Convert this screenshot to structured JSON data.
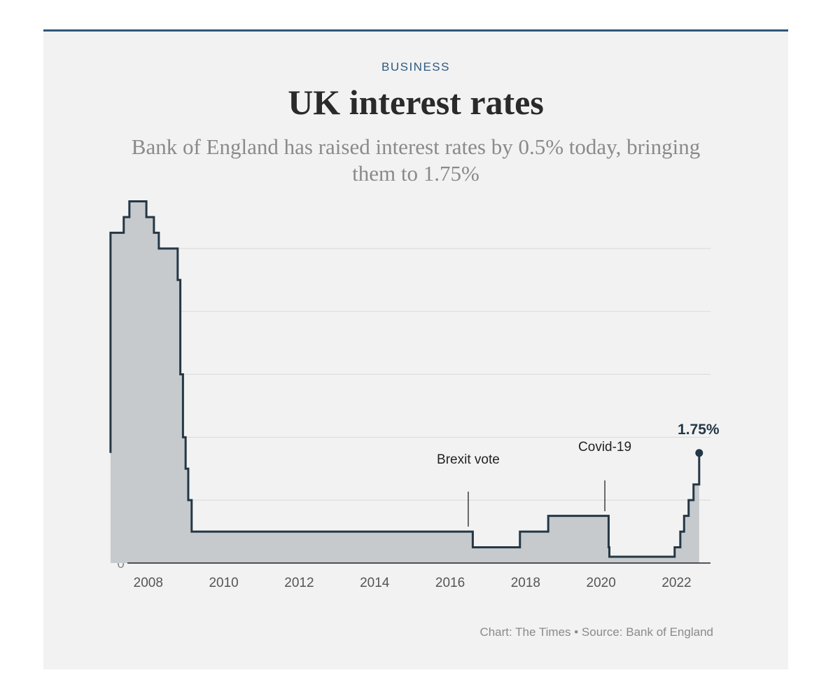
{
  "header": {
    "kicker": "BUSINESS",
    "title": "UK interest rates",
    "subtitle": "Bank of England has raised interest rates by 0.5% today, bringing them to 1.75%"
  },
  "credit": "Chart: The Times • Source: Bank of England",
  "colors": {
    "rule": "#2f5577",
    "kicker": "#2c5a80",
    "line": "#243746",
    "area": "#c6cacd",
    "grid": "#d9d9d9",
    "background": "#f2f2f2"
  },
  "chart_data": {
    "type": "area",
    "step": true,
    "title": "UK interest rates",
    "xlabel": "",
    "ylabel": "",
    "xlim": [
      2006.9,
      2022.9
    ],
    "ylim": [
      0,
      5.75
    ],
    "y_ticks": [
      0,
      1,
      2,
      3,
      4,
      5
    ],
    "x_ticks": [
      2008,
      2010,
      2012,
      2014,
      2016,
      2018,
      2020,
      2022
    ],
    "grid": true,
    "series": [
      {
        "name": "",
        "x": [
          2007.0,
          2007.35,
          2007.5,
          2007.95,
          2008.15,
          2008.28,
          2008.45,
          2008.78,
          2008.85,
          2008.92,
          2008.99,
          2009.06,
          2009.15,
          2016.6,
          2017.85,
          2018.6,
          2020.2,
          2020.22,
          2021.95,
          2022.1,
          2022.2,
          2022.32,
          2022.45,
          2022.6
        ],
        "y": [
          5.25,
          5.5,
          5.75,
          5.5,
          5.25,
          5.0,
          5.0,
          4.5,
          3.0,
          2.0,
          1.5,
          1.0,
          0.5,
          0.25,
          0.5,
          0.75,
          0.25,
          0.1,
          0.25,
          0.5,
          0.75,
          1.0,
          1.25,
          1.75
        ]
      }
    ],
    "annotations": [
      {
        "label": "Brexit vote",
        "x": 2016.48
      },
      {
        "label": "Covid-19",
        "x": 2020.1
      }
    ],
    "end_label": "1.75%"
  }
}
